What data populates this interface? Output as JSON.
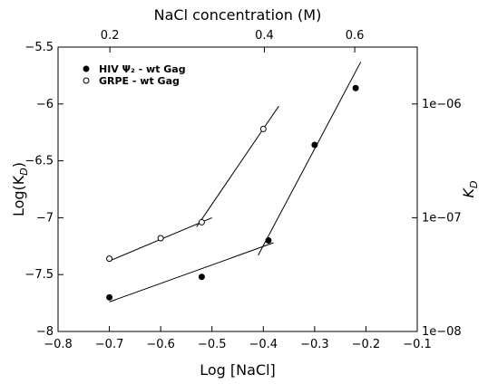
{
  "chart_data": {
    "type": "scatter",
    "xlabel": "Log [NaCl]",
    "ylabel": "Log(K",
    "ylabel_sub": "D",
    "ylabel_close": ")",
    "top_xlabel": "NaCl concentration (M)",
    "right_ylabel": "K",
    "right_ylabel_sub": "D",
    "xlim": [
      -0.8,
      -0.1
    ],
    "ylim": [
      -8,
      -5.5
    ],
    "x_ticks": [
      -0.8,
      -0.7,
      -0.6,
      -0.5,
      -0.4,
      -0.3,
      -0.2,
      -0.1
    ],
    "x_tick_labels": [
      "−0.8",
      "−0.7",
      "−0.6",
      "−0.5",
      "−0.4",
      "−0.3",
      "−0.2",
      "−0.1"
    ],
    "y_ticks": [
      -8,
      -7.5,
      -7,
      -6.5,
      -6,
      -5.5
    ],
    "y_tick_labels": [
      "−8",
      "−7.5",
      "−7",
      "−6.5",
      "−6",
      "−5.5"
    ],
    "top_axis": {
      "ticks": [
        0.2,
        0.4,
        0.6
      ],
      "tick_labels": [
        "0.2",
        "0.4",
        "0.6"
      ]
    },
    "right_axis": {
      "ticks": [
        1e-08,
        1e-07,
        1e-06
      ],
      "tick_labels": [
        "1e−08",
        "1e−07",
        "1e−06"
      ],
      "scale": "log"
    },
    "grid": false,
    "legend_position": "top-left",
    "series": [
      {
        "name": "HIV Ψ₂ - wt Gag",
        "marker": "filled",
        "x": [
          -0.7,
          -0.52,
          -0.39,
          -0.3,
          -0.22
        ],
        "y": [
          -7.7,
          -7.52,
          -7.2,
          -6.36,
          -5.86
        ]
      },
      {
        "name": "GRPE - wt Gag",
        "marker": "open",
        "x": [
          -0.7,
          -0.6,
          -0.52,
          -0.4
        ],
        "y": [
          -7.36,
          -7.18,
          -7.04,
          -6.22
        ]
      }
    ],
    "fit_lines": [
      {
        "x": [
          -0.7,
          -0.38
        ],
        "y": [
          -7.74,
          -7.22
        ]
      },
      {
        "x": [
          -0.41,
          -0.21
        ],
        "y": [
          -7.33,
          -5.63
        ]
      },
      {
        "x": [
          -0.7,
          -0.5
        ],
        "y": [
          -7.38,
          -7.0
        ]
      },
      {
        "x": [
          -0.53,
          -0.37
        ],
        "y": [
          -7.08,
          -6.02
        ]
      }
    ]
  }
}
